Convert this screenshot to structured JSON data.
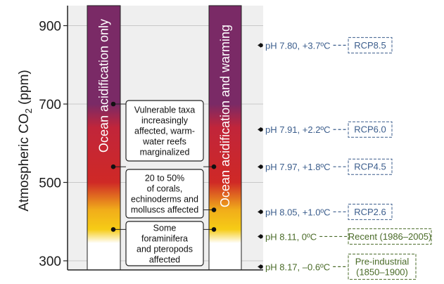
{
  "chart_data": {
    "type": "bar",
    "ylabel_prefix": "Atmospheric CO",
    "ylabel_sub": "2",
    "ylabel_suffix": " (ppm)",
    "ylim": [
      285,
      950
    ],
    "yticks": [
      300,
      500,
      700,
      900
    ],
    "grid": true,
    "bars": [
      {
        "label": "Ocean acidification only"
      },
      {
        "label": "Ocean acidification and warming"
      }
    ],
    "gradient_ppm": {
      "white_below": 345,
      "yellow_solid": [
        380,
        430
      ],
      "red_solid": [
        500,
        640
      ],
      "purple_from": 700
    },
    "impacts": [
      {
        "lines": [
          "Vulnerable taxa",
          "increasingly",
          "affected, warm-",
          "water reefs",
          "marginalized"
        ],
        "left_point_ppm": 700,
        "right_point_ppm": 540
      },
      {
        "lines": [
          "20 to 50%",
          "of corals,",
          "echinoderms and",
          "molluscs affected"
        ],
        "left_point_ppm": 540,
        "right_point_ppm": 430
      },
      {
        "lines": [
          "Some",
          "foraminifera",
          "and pteropods",
          "affected"
        ],
        "left_point_ppm": 380,
        "right_point_ppm": 380
      }
    ],
    "scenarios": [
      {
        "text": "pH 7.80, +3.7ºC",
        "badge": [
          "RCP8.5"
        ],
        "ppm": 850,
        "color": "#3b5d8c"
      },
      {
        "text": "pH 7.91, +2.2ºC",
        "badge": [
          "RCP6.0"
        ],
        "ppm": 635,
        "color": "#3b5d8c"
      },
      {
        "text": "pH 7.97, +1.8ºC",
        "badge": [
          "RCP4.5"
        ],
        "ppm": 540,
        "color": "#3b5d8c"
      },
      {
        "text": "pH 8.05, +1.0ºC",
        "badge": [
          "RCP2.6"
        ],
        "ppm": 425,
        "color": "#3b5d8c"
      },
      {
        "text": "pH 8.11,   0ºC",
        "badge": [
          "Recent (1986–2005)"
        ],
        "ppm": 362,
        "color": "#4a6b28"
      },
      {
        "text": "pH 8.17, –0.6ºC",
        "badge": [
          "Pre-industrial",
          "(1850–1900)"
        ],
        "ppm": 285,
        "color": "#4a6b28"
      }
    ]
  }
}
